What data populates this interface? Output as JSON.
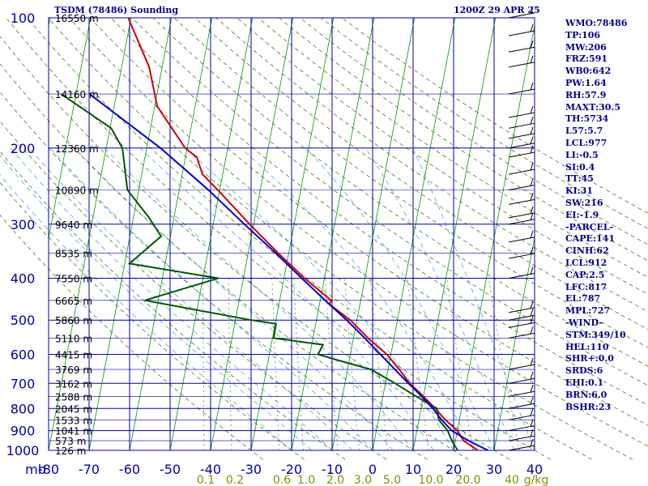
{
  "header": {
    "title": "TSDM (78486) Sounding",
    "time": "1200Z 29 APR 25"
  },
  "indices": [
    "WMO:78486",
    "TP:106",
    "MW:206",
    "FRZ:591",
    "WB0:642",
    "PW:1.64",
    "RH:57.9",
    "MAXT:30.5",
    "TH:5734",
    "L57:5.7",
    "LCL:977",
    "LI:-0.5",
    "SI:0.4",
    "TT:45",
    "KI:31",
    "SW:216",
    "EI:-1.9",
    "-PARCEL-",
    "CAPE:141",
    "CINH:62",
    "LCL:912",
    "CAP:2.5",
    "LFC:817",
    "EL:787",
    "MPL:727",
    "-WIND-",
    "STM:349/10",
    "HEL:110",
    "SHR+:0.0",
    "SRDS:6",
    "EHI:0.1",
    "BRN:6.0",
    "BSHR:23"
  ],
  "colors": {
    "temperature": "#cc0000",
    "dewpoint": "#005500",
    "parcel": "#0000cc",
    "isobar": "#0000aa",
    "isotherm": "#009900",
    "dry_adiabat": "#336600",
    "moist_adiabat": "#3399dd",
    "text": "#00008b",
    "mixing_ratio_text": "#8b8b00"
  },
  "chart_data": {
    "type": "line",
    "title": "TSDM (78486) Sounding",
    "skew": "skew-T log-P",
    "xlabel": "",
    "ylabel": "mb",
    "y_unit_label": "mb",
    "xlim": [
      -80,
      40
    ],
    "ylim": [
      1000,
      100
    ],
    "y_scale": "log",
    "grid": true,
    "pressure_ticks": [
      100,
      200,
      300,
      400,
      500,
      600,
      700,
      800,
      900,
      1000
    ],
    "temperature_ticks": [
      -80,
      -70,
      -60,
      -50,
      -40,
      -30,
      -20,
      -10,
      0,
      10,
      20,
      30,
      40
    ],
    "mixing_ratio_labels": [
      "0.1",
      "0.2",
      "0.6",
      "1.0",
      "2.0",
      "3.0",
      "5.0",
      "10.0",
      "20.0",
      "40",
      "g/kg"
    ],
    "height_labels": [
      {
        "pressure": 100,
        "text": "16550 m"
      },
      {
        "pressure": 150,
        "text": "14160 m"
      },
      {
        "pressure": 200,
        "text": "12360 m"
      },
      {
        "pressure": 250,
        "text": "10890 m"
      },
      {
        "pressure": 300,
        "text": "9640 m"
      },
      {
        "pressure": 350,
        "text": "8535 m"
      },
      {
        "pressure": 400,
        "text": "7550 m"
      },
      {
        "pressure": 450,
        "text": "6665 m"
      },
      {
        "pressure": 500,
        "text": "5860 m"
      },
      {
        "pressure": 550,
        "text": "5110 m"
      },
      {
        "pressure": 600,
        "text": "4415 m"
      },
      {
        "pressure": 650,
        "text": "3769 m"
      },
      {
        "pressure": 700,
        "text": "3162 m"
      },
      {
        "pressure": 750,
        "text": "2588 m"
      },
      {
        "pressure": 800,
        "text": "2045 m"
      },
      {
        "pressure": 850,
        "text": "1533 m"
      },
      {
        "pressure": 900,
        "text": "1041 m"
      },
      {
        "pressure": 950,
        "text": "573 m"
      },
      {
        "pressure": 1000,
        "text": "126 m"
      }
    ],
    "series": [
      {
        "key": "temperature",
        "pressure": [
          1000,
          950,
          900,
          850,
          800,
          750,
          700,
          650,
          600,
          550,
          500,
          460,
          450,
          400,
          350,
          300,
          250,
          230,
          210,
          200,
          160,
          130,
          100
        ],
        "temperature": [
          26.0,
          22.0,
          20.0,
          16.5,
          13.5,
          10.0,
          6.0,
          2.8,
          -1.0,
          -6.4,
          -11.6,
          -17.5,
          -17.3,
          -24.9,
          -32.6,
          -41.0,
          -50.5,
          -55.0,
          -57.2,
          -60.5,
          -69.4,
          -73.2,
          -80.7
        ]
      },
      {
        "key": "dewpoint",
        "pressure": [
          1000,
          950,
          900,
          850,
          800,
          750,
          700,
          650,
          620,
          600,
          570,
          550,
          510,
          500,
          450,
          400,
          370,
          320,
          290,
          250,
          200,
          180,
          150
        ],
        "temperature": [
          21.0,
          19.1,
          17.6,
          14.9,
          13.9,
          8.2,
          2.4,
          -4.2,
          -12.5,
          -18.0,
          -17.2,
          -29.7,
          -29.8,
          -36.1,
          -63.3,
          -46.2,
          -68.8,
          -62.3,
          -66.1,
          -72.8,
          -76.0,
          -79.7,
          -93.7
        ]
      },
      {
        "key": "parcel",
        "pressure": [
          1000,
          950,
          900,
          850,
          800,
          750,
          700,
          650,
          600,
          550,
          500,
          450,
          400,
          350,
          300,
          250,
          200,
          150
        ],
        "temperature": [
          28.5,
          23.2,
          18.6,
          15.6,
          12.9,
          9.6,
          5.7,
          1.7,
          -2.6,
          -7.2,
          -12.5,
          -18.8,
          -25.6,
          -33.2,
          -42.3,
          -52.8,
          -66.6,
          -86.7
        ]
      }
    ],
    "wind_barbs_pressure": [
      100,
      110,
      120,
      130,
      150,
      170,
      180,
      190,
      200,
      210,
      230,
      250,
      270,
      290,
      300,
      330,
      360,
      400,
      480,
      500,
      520,
      550,
      650,
      700,
      750,
      800,
      850,
      900,
      950,
      1000
    ]
  }
}
